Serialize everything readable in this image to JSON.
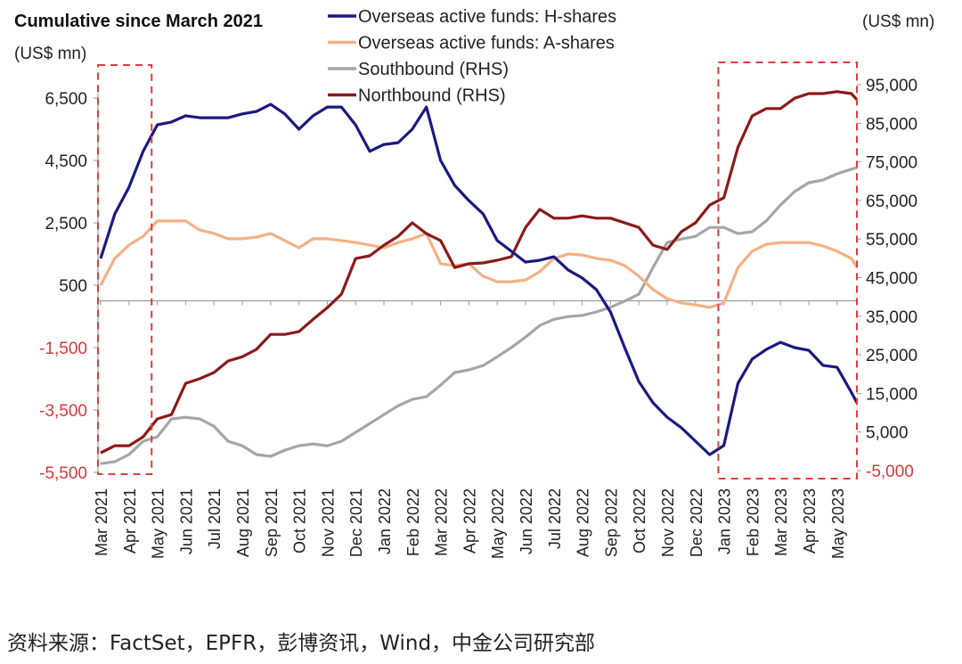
{
  "chart_data": {
    "type": "line",
    "title": "Cumulative since March 2021",
    "ylabel_left": "(US$ mn)",
    "ylabel_right": "(US$ mn)",
    "left_axis": {
      "range": [
        -5500,
        6500
      ],
      "ticks": [
        6500,
        4500,
        2500,
        500,
        -1500,
        -3500,
        -5500
      ],
      "tick_labels": [
        "6,500",
        "4,500",
        "2,500",
        "500",
        "-1,500",
        "-3,500",
        "-5,500"
      ]
    },
    "right_axis": {
      "range": [
        -5000,
        95000
      ],
      "ticks": [
        95000,
        85000,
        75000,
        65000,
        55000,
        45000,
        35000,
        25000,
        15000,
        5000,
        -5000
      ],
      "tick_labels": [
        "95,000",
        "85,000",
        "75,000",
        "65,000",
        "55,000",
        "45,000",
        "35,000",
        "25,000",
        "15,000",
        "5,000",
        "-5,000"
      ]
    },
    "x_tick_labels": [
      "Mar 2021",
      "Apr 2021",
      "May 2021",
      "Jun 2021",
      "Jul 2021",
      "Aug 2021",
      "Sep 2021",
      "Oct 2021",
      "Nov 2021",
      "Dec 2021",
      "Jan 2022",
      "Feb 2022",
      "Mar 2022",
      "Apr 2022",
      "May 2022",
      "Jun 2022",
      "Jul 2022",
      "Aug 2022",
      "Sep 2022",
      "Oct 2022",
      "Nov 2022",
      "Dec 2022",
      "Jan 2023",
      "Feb 2023",
      "Mar 2023",
      "Apr 2023",
      "May 2023"
    ],
    "x_unit": "months since Mar 2021",
    "x": [
      0,
      0.5,
      1,
      1.5,
      2,
      2.5,
      3,
      3.5,
      4,
      4.5,
      5,
      5.5,
      6,
      6.5,
      7,
      7.5,
      8,
      8.5,
      9,
      9.5,
      10,
      10.5,
      11,
      11.5,
      12,
      12.5,
      13,
      13.5,
      14,
      14.5,
      15,
      15.5,
      16,
      16.5,
      17,
      17.5,
      18,
      18.5,
      19,
      19.5,
      20,
      20.5,
      21,
      21.5,
      22,
      22.5,
      23,
      23.5,
      24,
      24.5,
      25,
      25.5,
      26,
      26.5,
      26.7
    ],
    "series": [
      {
        "name": "Overseas active funds: H-shares",
        "axis": "left",
        "color": "#1a1a80",
        "values": [
          1357,
          2786,
          3640,
          4790,
          5640,
          5730,
          5930,
          5870,
          5870,
          5870,
          5990,
          6070,
          6300,
          5990,
          5500,
          5930,
          6210,
          6210,
          5640,
          4790,
          5010,
          5070,
          5500,
          6210,
          4500,
          3700,
          3210,
          2790,
          1930,
          1590,
          1240,
          1300,
          1410,
          990,
          730,
          360,
          -360,
          -1500,
          -2590,
          -3270,
          -3730,
          -4070,
          -4500,
          -4930,
          -4640,
          -2640,
          -1870,
          -1560,
          -1330,
          -1500,
          -1590,
          -2070,
          -2130,
          -2930,
          -3270
        ]
      },
      {
        "name": "Overseas active funds: A-shares",
        "axis": "left",
        "color": "#f4b183",
        "values": [
          500,
          1360,
          1790,
          2070,
          2560,
          2560,
          2560,
          2270,
          2160,
          1990,
          1990,
          2040,
          2160,
          1930,
          1700,
          1990,
          1990,
          1930,
          1870,
          1790,
          1700,
          1870,
          1990,
          2160,
          1190,
          1130,
          1190,
          790,
          610,
          610,
          670,
          930,
          1360,
          1500,
          1470,
          1360,
          1300,
          1130,
          790,
          360,
          70,
          -70,
          -130,
          -210,
          -70,
          1070,
          1590,
          1810,
          1870,
          1870,
          1870,
          1760,
          1590,
          1360,
          1070
        ]
      },
      {
        "name": "Southbound (RHS)",
        "axis": "right",
        "color": "#a6a6a6",
        "values": [
          -3200,
          -2700,
          -850,
          2600,
          3750,
          8400,
          8800,
          8400,
          6500,
          2600,
          1450,
          -850,
          -1300,
          300,
          1450,
          1900,
          1450,
          2600,
          4900,
          7200,
          9500,
          11800,
          13450,
          14150,
          17150,
          20400,
          21100,
          22200,
          24500,
          26900,
          29600,
          32600,
          34200,
          34900,
          35200,
          36100,
          37300,
          38900,
          40700,
          47600,
          54100,
          55000,
          55700,
          58000,
          58000,
          56400,
          56900,
          59700,
          63800,
          67300,
          69600,
          70300,
          71900,
          73100,
          73500
        ]
      },
      {
        "name": "Northbound (RHS)",
        "axis": "right",
        "color": "#8b1a1a",
        "values": [
          -400,
          1450,
          1450,
          3750,
          8400,
          9500,
          17600,
          18800,
          20400,
          23400,
          24500,
          26400,
          30300,
          30300,
          31000,
          34200,
          37200,
          40700,
          49950,
          50650,
          53400,
          55700,
          59200,
          56400,
          54600,
          47600,
          48600,
          48800,
          49500,
          50400,
          58000,
          62700,
          60400,
          60400,
          61000,
          60400,
          60400,
          59200,
          58000,
          53400,
          52300,
          56900,
          59200,
          63800,
          65700,
          78800,
          86900,
          88800,
          88800,
          91500,
          92700,
          92700,
          93200,
          92700,
          91100
        ]
      }
    ],
    "annotations": [
      {
        "type": "dashed-box",
        "color": "#e03c3c",
        "x_from": 0,
        "x_to": 1.8
      },
      {
        "type": "dashed-box",
        "color": "#e03c3c",
        "x_from": 21.9,
        "x_to": 26.7
      }
    ],
    "negative_tick_color": "#d9383a",
    "grid": false,
    "legend": "top-center"
  },
  "footer": {
    "source": "资料来源：FactSet，EPFR，彭博资讯，Wind，中金公司研究部"
  }
}
